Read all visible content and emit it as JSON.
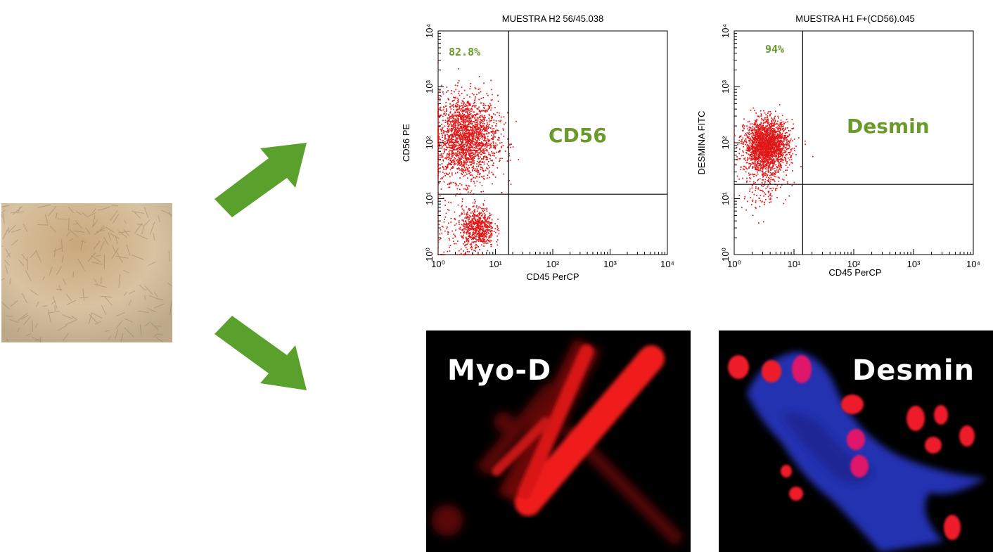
{
  "colors": {
    "arrow": "#5aa02c",
    "dot": "#e01818",
    "marker_text": "#6a9a2a",
    "gate": "#000000"
  },
  "culture_image": {
    "icon": "cell-culture-micrograph"
  },
  "flow_plots": [
    {
      "title": "MUESTRA H2 56/45.038",
      "xlabel": "CD45 PerCP",
      "ylabel": "CD56 PE",
      "percent": "82.8%",
      "marker": "CD56",
      "x_ticks": [
        "10⁰",
        "10¹",
        "10²",
        "10³",
        "10⁴"
      ],
      "y_ticks": [
        "10⁰",
        "10¹",
        "10²",
        "10³",
        "10⁴"
      ]
    },
    {
      "title": "MUESTRA H1 F+(CD56).045",
      "xlabel": "CD45 PerCP",
      "ylabel": "DESMINA FITC",
      "percent": "94%",
      "marker": "Desmin",
      "x_ticks": [
        "10⁰",
        "10¹",
        "10²",
        "10³",
        "10⁴"
      ],
      "y_ticks": [
        "10⁰",
        "10¹",
        "10²",
        "10³",
        "10⁴"
      ]
    }
  ],
  "chart_data": [
    {
      "type": "scatter",
      "title": "MUESTRA H2 56/45.038",
      "xlabel": "CD45 PerCP",
      "ylabel": "CD56 PE",
      "x_scale": "log",
      "y_scale": "log",
      "xlim": [
        1,
        10000
      ],
      "ylim": [
        1,
        10000
      ],
      "gate": {
        "x": 17,
        "y": 12
      },
      "quadrant_annotations": [
        {
          "quadrant": "upper-left",
          "text": "82.8%"
        },
        {
          "quadrant": "upper-right",
          "text": "CD56"
        }
      ],
      "clusters": [
        {
          "center": [
            3,
            120
          ],
          "spread": [
            0.28,
            0.38
          ],
          "count": 2200
        },
        {
          "center": [
            5,
            3
          ],
          "spread": [
            0.14,
            0.18
          ],
          "count": 650
        },
        {
          "center": [
            2,
            2
          ],
          "spread": [
            0.25,
            0.35
          ],
          "count": 120
        }
      ]
    },
    {
      "type": "scatter",
      "title": "MUESTRA H1 F+(CD56).045",
      "xlabel": "CD45 PerCP",
      "ylabel": "DESMINA FITC",
      "x_scale": "log",
      "y_scale": "log",
      "xlim": [
        1,
        10000
      ],
      "ylim": [
        1,
        10000
      ],
      "gate": {
        "x": 14,
        "y": 18
      },
      "quadrant_annotations": [
        {
          "quadrant": "upper-left",
          "text": "94%"
        },
        {
          "quadrant": "upper-right",
          "text": "Desmin"
        }
      ],
      "clusters": [
        {
          "center": [
            3.5,
            90
          ],
          "spread": [
            0.18,
            0.22
          ],
          "count": 2200
        },
        {
          "center": [
            3,
            20
          ],
          "spread": [
            0.2,
            0.25
          ],
          "count": 200
        }
      ]
    }
  ],
  "fluorescence": [
    {
      "label": "Myo-D",
      "icon": "myotube-red-stain"
    },
    {
      "label": "Desmin",
      "icon": "cell-blue-red-nuclei"
    }
  ]
}
